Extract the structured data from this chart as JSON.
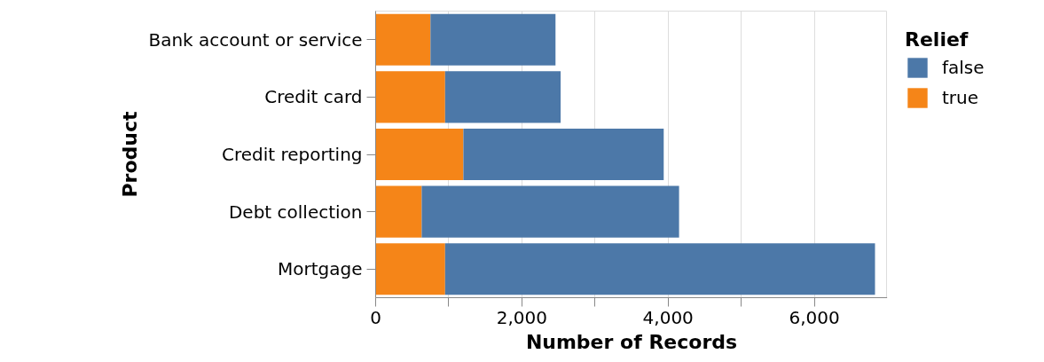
{
  "chart_data": {
    "type": "bar",
    "orientation": "horizontal",
    "stacked": true,
    "categories": [
      "Bank account or service",
      "Credit card",
      "Credit reporting",
      "Debt collection",
      "Mortgage"
    ],
    "series": [
      {
        "name": "true",
        "color": "#f58518",
        "values": [
          750,
          950,
          1200,
          630,
          950
        ]
      },
      {
        "name": "false",
        "color": "#4c78a8",
        "values": [
          1710,
          1580,
          2740,
          3520,
          5880
        ]
      }
    ],
    "xlabel": "Number of Records",
    "ylabel": "Product",
    "legend_title": "Relief",
    "xlim": [
      0,
      7000
    ],
    "xticks": [
      0,
      {
        "value": 1000,
        "label": null
      },
      {
        "value": 2000,
        "label": "2,000"
      },
      {
        "value": 3000,
        "label": null
      },
      {
        "value": 4000,
        "label": "4,000"
      },
      {
        "value": 5000,
        "label": null
      },
      {
        "value": 6000,
        "label": "6,000"
      },
      {
        "value": 7000,
        "label": null
      }
    ],
    "grid": "x",
    "legend": "right"
  }
}
